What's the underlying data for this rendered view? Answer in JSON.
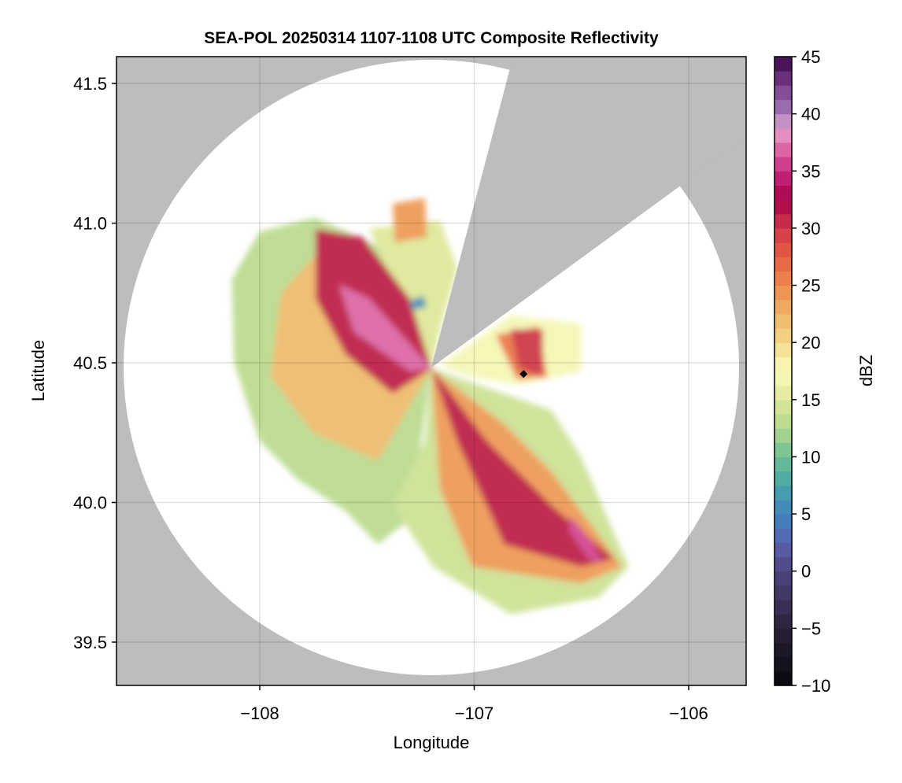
{
  "chart_data": {
    "type": "heatmap",
    "title": "SEA-POL 20250314 1107-1108 UTC Composite Reflectivity",
    "xlabel": "Longitude",
    "ylabel": "Latitude",
    "xlim": [
      -108.668,
      -105.732
    ],
    "ylim": [
      39.345,
      41.596
    ],
    "xticks": [
      -108,
      -107,
      -106
    ],
    "xtick_labels": [
      "−108",
      "−107",
      "−106"
    ],
    "yticks": [
      39.5,
      40.0,
      40.5,
      41.0,
      41.5
    ],
    "ytick_labels": [
      "39.5",
      "40.0",
      "40.5",
      "41.0",
      "41.5"
    ],
    "grid": true,
    "radar_center": [
      -107.2,
      40.48
    ],
    "colorbar": {
      "label": "dBZ",
      "range": [
        -10,
        45
      ],
      "bin_width": 1.25,
      "ticks": [
        -10,
        -5,
        0,
        5,
        10,
        15,
        20,
        25,
        30,
        35,
        40,
        45
      ],
      "tick_labels": [
        "−10",
        "−5",
        "0",
        "5",
        "10",
        "15",
        "20",
        "25",
        "30",
        "35",
        "40",
        "45"
      ],
      "colormap": [
        [
          -10,
          "#08070c"
        ],
        [
          -5,
          "#2a2238"
        ],
        [
          0,
          "#4f4580"
        ],
        [
          2.5,
          "#5a62b0"
        ],
        [
          5,
          "#3f84c0"
        ],
        [
          7.5,
          "#4aa5a6"
        ],
        [
          10,
          "#6dbf96"
        ],
        [
          12.5,
          "#b2d88e"
        ],
        [
          15,
          "#dfe89a"
        ],
        [
          17.5,
          "#fbfbbd"
        ],
        [
          20,
          "#f2d98a"
        ],
        [
          22.5,
          "#efb568"
        ],
        [
          25,
          "#ee8a4f"
        ],
        [
          27.5,
          "#e45f43"
        ],
        [
          30,
          "#cf3a48"
        ],
        [
          32.5,
          "#a5004c"
        ],
        [
          35,
          "#c82c7e"
        ],
        [
          37.5,
          "#e478b0"
        ],
        [
          38.75,
          "#e3a5d0"
        ],
        [
          40,
          "#a67cb8"
        ],
        [
          42.5,
          "#7a3d8c"
        ],
        [
          45,
          "#3a0846"
        ]
      ]
    },
    "echo_regions": [
      {
        "dbz": 13,
        "lonlat": [
          [
            -107.2,
            40.48
          ],
          [
            -107.4,
            40.9
          ],
          [
            -107.74,
            41.02
          ],
          [
            -108.0,
            40.97
          ],
          [
            -108.13,
            40.8
          ],
          [
            -108.12,
            40.5
          ],
          [
            -108.0,
            40.22
          ],
          [
            -107.82,
            40.08
          ],
          [
            -107.6,
            39.97
          ],
          [
            -107.45,
            39.85
          ],
          [
            -107.3,
            39.94
          ]
        ]
      },
      {
        "dbz": 15,
        "lonlat": [
          [
            -107.2,
            40.48
          ],
          [
            -107.49,
            40.98
          ],
          [
            -107.16,
            41.01
          ],
          [
            -107.08,
            40.84
          ],
          [
            -107.16,
            40.62
          ]
        ]
      },
      {
        "dbz": 14,
        "lonlat": [
          [
            -107.2,
            40.48
          ],
          [
            -106.64,
            40.33
          ],
          [
            -106.5,
            40.16
          ],
          [
            -106.28,
            39.77
          ],
          [
            -106.42,
            39.66
          ],
          [
            -106.83,
            39.6
          ],
          [
            -107.19,
            39.77
          ],
          [
            -107.38,
            39.99
          ],
          [
            -107.23,
            40.22
          ]
        ]
      },
      {
        "dbz": 17,
        "lonlat": [
          [
            -107.16,
            40.49
          ],
          [
            -106.83,
            40.67
          ],
          [
            -106.5,
            40.64
          ],
          [
            -106.5,
            40.47
          ],
          [
            -106.79,
            40.42
          ],
          [
            -107.01,
            40.45
          ]
        ]
      },
      {
        "dbz": 22,
        "lonlat": [
          [
            -107.2,
            40.48
          ],
          [
            -107.45,
            40.85
          ],
          [
            -107.7,
            40.92
          ],
          [
            -107.9,
            40.75
          ],
          [
            -107.95,
            40.45
          ],
          [
            -107.75,
            40.25
          ],
          [
            -107.45,
            40.15
          ]
        ]
      },
      {
        "dbz": 24,
        "lonlat": [
          [
            -107.2,
            40.48
          ],
          [
            -106.86,
            40.28
          ],
          [
            -106.64,
            40.11
          ],
          [
            -106.31,
            39.77
          ],
          [
            -106.5,
            39.71
          ],
          [
            -107.01,
            39.77
          ],
          [
            -107.16,
            40.05
          ]
        ]
      },
      {
        "dbz": 24,
        "lonlat": [
          [
            -107.38,
            41.07
          ],
          [
            -107.23,
            41.09
          ],
          [
            -107.22,
            40.95
          ],
          [
            -107.37,
            40.93
          ]
        ]
      },
      {
        "dbz": 26,
        "lonlat": [
          [
            -106.9,
            40.6
          ],
          [
            -106.7,
            40.63
          ],
          [
            -106.66,
            40.45
          ],
          [
            -106.8,
            40.44
          ]
        ]
      },
      {
        "dbz": 31,
        "lonlat": [
          [
            -107.74,
            40.98
          ],
          [
            -107.52,
            40.95
          ],
          [
            -107.3,
            40.73
          ],
          [
            -107.2,
            40.48
          ],
          [
            -107.38,
            40.39
          ],
          [
            -107.6,
            40.53
          ],
          [
            -107.74,
            40.73
          ]
        ]
      },
      {
        "dbz": 31,
        "lonlat": [
          [
            -107.2,
            40.48
          ],
          [
            -106.94,
            40.22
          ],
          [
            -106.64,
            39.99
          ],
          [
            -106.35,
            39.8
          ],
          [
            -106.5,
            39.77
          ],
          [
            -106.86,
            39.85
          ],
          [
            -107.08,
            40.22
          ]
        ]
      },
      {
        "dbz": 30,
        "lonlat": [
          [
            -106.83,
            40.62
          ],
          [
            -106.68,
            40.62
          ],
          [
            -106.68,
            40.45
          ],
          [
            -106.79,
            40.48
          ]
        ]
      },
      {
        "dbz": 37,
        "lonlat": [
          [
            -107.63,
            40.78
          ],
          [
            -107.49,
            40.73
          ],
          [
            -107.2,
            40.48
          ],
          [
            -107.3,
            40.47
          ],
          [
            -107.56,
            40.61
          ]
        ]
      },
      {
        "dbz": 36,
        "lonlat": [
          [
            -106.55,
            39.95
          ],
          [
            -106.45,
            39.86
          ],
          [
            -106.4,
            39.78
          ],
          [
            -106.47,
            39.8
          ],
          [
            -106.56,
            39.9
          ]
        ]
      },
      {
        "dbz": 6,
        "lonlat": [
          [
            -107.3,
            40.72
          ],
          [
            -107.24,
            40.74
          ],
          [
            -107.22,
            40.7
          ],
          [
            -107.29,
            40.69
          ]
        ]
      }
    ],
    "markers": [
      {
        "lonlat": [
          -106.77,
          40.46
        ],
        "symbol": "diamond",
        "color": "#000000"
      }
    ]
  }
}
